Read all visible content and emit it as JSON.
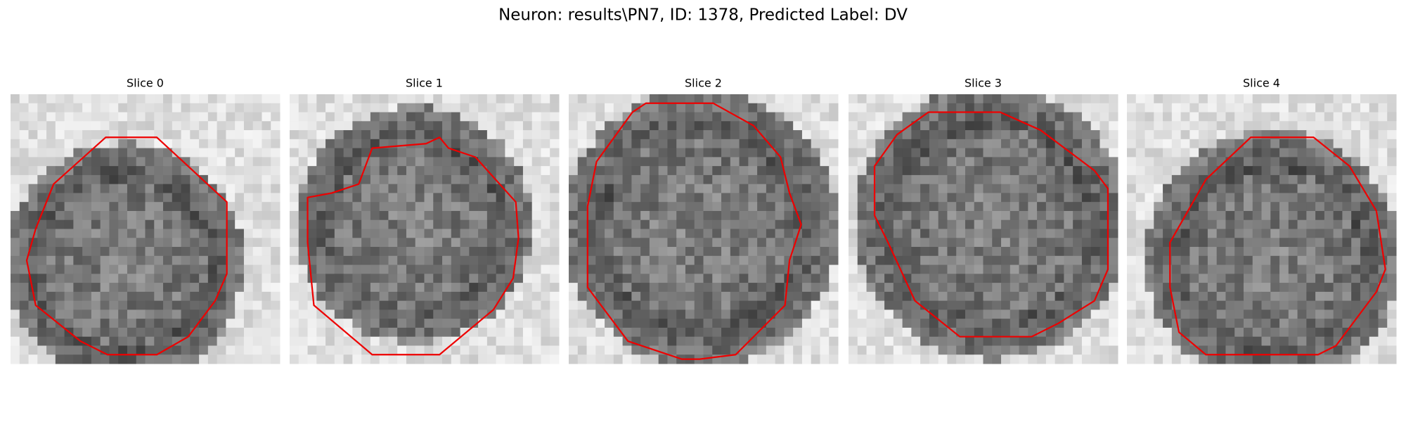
{
  "title": "Neuron: results\\PN7, ID: 1378, Predicted Label: DV",
  "panels": [
    {
      "title": "Slice 0"
    },
    {
      "title": "Slice 1"
    },
    {
      "title": "Slice 2"
    },
    {
      "title": "Slice 3"
    },
    {
      "title": "Slice 4"
    }
  ]
}
